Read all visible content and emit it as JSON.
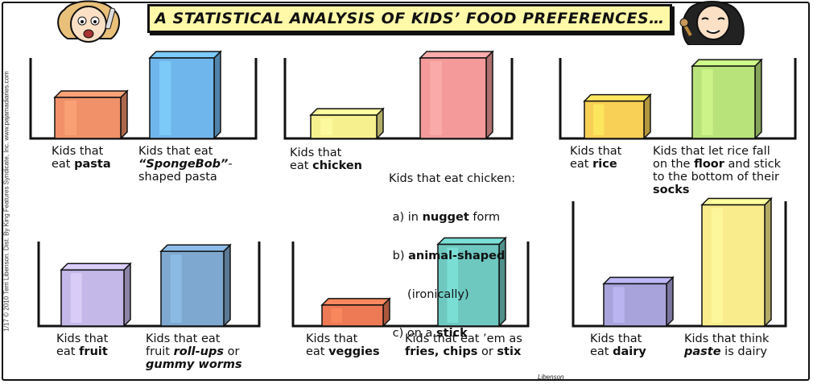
{
  "title": "A STATISTICAL ANALYSIS OF KIDS’ FOOD PREFERENCES…",
  "side_credit": "1/17 © 2010 Terri Libenson. Dist. By King Features Syndicate, Inc.     www.pajamadiaries.com",
  "signature": "Libenson",
  "chart_data": [
    {
      "type": "bar",
      "categories": [
        "Kids that eat pasta",
        "Kids that eat “SpongeBob”-shaped pasta"
      ],
      "values": [
        30,
        60
      ],
      "colors": [
        "#f0916a",
        "#6fb6ec"
      ],
      "ylim": [
        0,
        100
      ]
    },
    {
      "type": "bar",
      "categories": [
        "Kids that eat chicken",
        "Kids that eat chicken: a) in nugget form b) animal-shaped (ironically) c) on a stick"
      ],
      "values": [
        20,
        70
      ],
      "colors": [
        "#f7f08e",
        "#f49a9a"
      ],
      "ylim": [
        0,
        100
      ]
    },
    {
      "type": "bar",
      "categories": [
        "Kids that eat rice",
        "Kids that let rice fall on the floor and stick to the bottom of their socks"
      ],
      "values": [
        32,
        62
      ],
      "colors": [
        "#f8d055",
        "#b8e27a"
      ],
      "ylim": [
        0,
        100
      ]
    },
    {
      "type": "bar",
      "categories": [
        "Kids that eat fruit",
        "Kids that eat fruit roll-ups or gummy worms"
      ],
      "values": [
        48,
        64
      ],
      "colors": [
        "#c4b8e8",
        "#7ea8cf"
      ],
      "ylim": [
        0,
        100
      ]
    },
    {
      "type": "bar",
      "categories": [
        "Kids that eat veggies",
        "Kids that eat ’em as fries, chips or stix"
      ],
      "values": [
        18,
        70
      ],
      "colors": [
        "#ee7a55",
        "#6ec8c0"
      ],
      "ylim": [
        0,
        100
      ]
    },
    {
      "type": "bar",
      "categories": [
        "Kids that eat dairy",
        "Kids that think paste is dairy"
      ],
      "values": [
        30,
        86
      ],
      "colors": [
        "#a9a3dc",
        "#f8ec8c"
      ],
      "ylim": [
        0,
        100
      ]
    }
  ],
  "captions": {
    "p1a": {
      "l1": "Kids that",
      "l2a": "eat ",
      "l2b": "pasta"
    },
    "p1b": {
      "l1": "Kids that eat",
      "l2a": "“SpongeBob”",
      "l2b": "-",
      "l3": "shaped pasta"
    },
    "p2a": {
      "l1": "Kids that",
      "l2a": "eat ",
      "l2b": "chicken"
    },
    "p2b": {
      "l1": "Kids that eat chicken:",
      "l2a": " a) in ",
      "l2b": "nugget",
      "l2c": " form",
      "l3a": " b) ",
      "l3b": "animal-shaped",
      "l4": "     (ironically)",
      "l5a": " c) on a ",
      "l5b": "stick"
    },
    "p3a": {
      "l1": "Kids that",
      "l2a": "eat ",
      "l2b": "rice"
    },
    "p3b": {
      "l1": "Kids that let rice fall",
      "l2a": "on the ",
      "l2b": "floor",
      "l2c": " and stick",
      "l3": "to the bottom of their",
      "l4": "socks"
    },
    "p4a": {
      "l1": "Kids that",
      "l2a": "eat ",
      "l2b": "fruit"
    },
    "p4b": {
      "l1": "Kids that eat",
      "l2a": "fruit ",
      "l2b": "roll-ups",
      "l2c": " or",
      "l3": "gummy worms"
    },
    "p5a": {
      "l1": "Kids that",
      "l2a": "eat ",
      "l2b": "veggies"
    },
    "p5b": {
      "l1": "Kids that eat ’em as",
      "l2": "fries, chips",
      "l2c": " or ",
      "l2d": "stix"
    },
    "p6a": {
      "l1": "Kids that",
      "l2a": "eat ",
      "l2b": "dairy"
    },
    "p6b": {
      "l1": "Kids that think",
      "l2a": "paste",
      "l2b": " is dairy"
    }
  }
}
